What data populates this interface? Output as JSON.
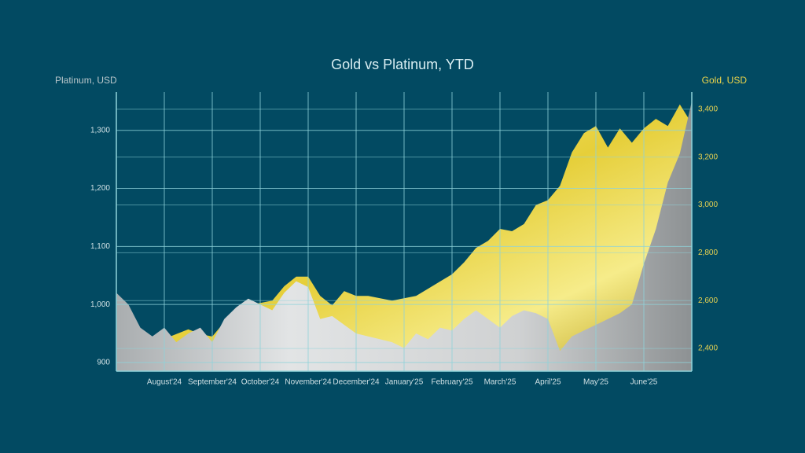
{
  "chart_data": {
    "type": "area",
    "title": "Gold vs Platinum, YTD",
    "categories": [
      null,
      null,
      null,
      null,
      "August'24",
      null,
      null,
      null,
      "September'24",
      null,
      null,
      null,
      "October'24",
      null,
      null,
      null,
      "November'24",
      null,
      null,
      null,
      "December'24",
      null,
      null,
      null,
      "January'25",
      null,
      null,
      null,
      "February'25",
      null,
      null,
      null,
      "March'25",
      null,
      null,
      null,
      "April'25",
      null,
      null,
      null,
      "May'25",
      null,
      null,
      null,
      "June'25",
      null,
      null,
      null,
      null
    ],
    "series": [
      {
        "name": "Platinum, USD",
        "color": "#c9cccd",
        "values": [
          1020,
          1000,
          960,
          945,
          960,
          935,
          950,
          960,
          935,
          975,
          995,
          1010,
          1000,
          990,
          1020,
          1040,
          1030,
          975,
          980,
          965,
          950,
          945,
          940,
          935,
          925,
          950,
          940,
          960,
          955,
          975,
          990,
          975,
          960,
          980,
          990,
          985,
          975,
          920,
          945,
          955,
          965,
          975,
          985,
          1000,
          1070,
          1130,
          1210,
          1260,
          1350
        ]
      },
      {
        "name": "Gold, USD",
        "color": "#e8d44a",
        "axis": "y2",
        "values": [
          2410,
          2420,
          2400,
          2420,
          2440,
          2460,
          2480,
          2460,
          2450,
          2510,
          2560,
          2580,
          2590,
          2600,
          2660,
          2700,
          2700,
          2620,
          2580,
          2640,
          2620,
          2620,
          2610,
          2600,
          2610,
          2620,
          2650,
          2680,
          2710,
          2760,
          2820,
          2850,
          2900,
          2890,
          2920,
          3000,
          3020,
          3080,
          3220,
          3300,
          3330,
          3240,
          3320,
          3260,
          3320,
          3360,
          3330,
          3420,
          3340
        ]
      }
    ],
    "ylim": [
      885,
      1366
    ],
    "yticks": [
      900,
      {
        "value": 1000,
        "label": "1,000"
      },
      {
        "value": 1100,
        "label": "1,100"
      },
      {
        "value": 1200,
        "label": "1,200"
      },
      {
        "value": 1300,
        "label": "1,300"
      }
    ],
    "y2lim": [
      2305,
      3472
    ],
    "y2ticks": [
      {
        "value": 2400,
        "label": "2,400"
      },
      {
        "value": 2600,
        "label": "2,600"
      },
      {
        "value": 2800,
        "label": "2,800"
      },
      {
        "value": 3000,
        "label": "3,000"
      },
      {
        "value": 3200,
        "label": "3,200"
      },
      {
        "value": 3400,
        "label": "3,400"
      }
    ],
    "grid": true
  }
}
